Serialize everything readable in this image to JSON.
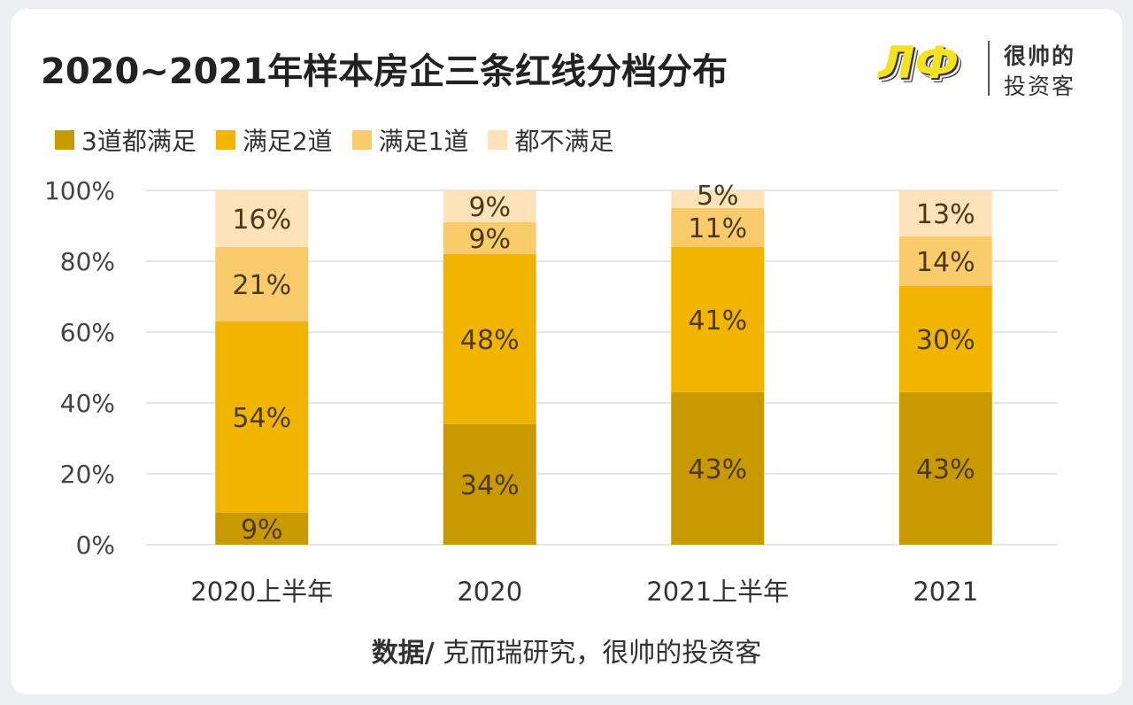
{
  "title": "2020~2021年样本房企三条红线分档分布",
  "logo": {
    "mark": "帅",
    "line1": "很帅的",
    "line2": "投资客"
  },
  "source": {
    "label": "数据/",
    "text": " 克而瑞研究，很帅的投资客"
  },
  "chart_data": {
    "type": "bar",
    "stacked": true,
    "title": "2020~2021年样本房企三条红线分档分布",
    "categories": [
      "2020上半年",
      "2020",
      "2021上半年",
      "2021"
    ],
    "series": [
      {
        "name": "3道都满足",
        "color": "#C99A00",
        "values": [
          9,
          34,
          43,
          43
        ]
      },
      {
        "name": "满足2道",
        "color": "#F1B500",
        "values": [
          54,
          48,
          41,
          30
        ]
      },
      {
        "name": "满足1道",
        "color": "#FACB6A",
        "values": [
          21,
          9,
          11,
          14
        ]
      },
      {
        "name": "都不满足",
        "color": "#FDE2BA",
        "values": [
          16,
          9,
          5,
          13
        ]
      }
    ],
    "ylim": [
      0,
      100
    ],
    "yticks": [
      "0%",
      "20%",
      "40%",
      "60%",
      "80%",
      "100%"
    ],
    "grid": true,
    "legend": "top-left",
    "label_suffix": "%"
  }
}
